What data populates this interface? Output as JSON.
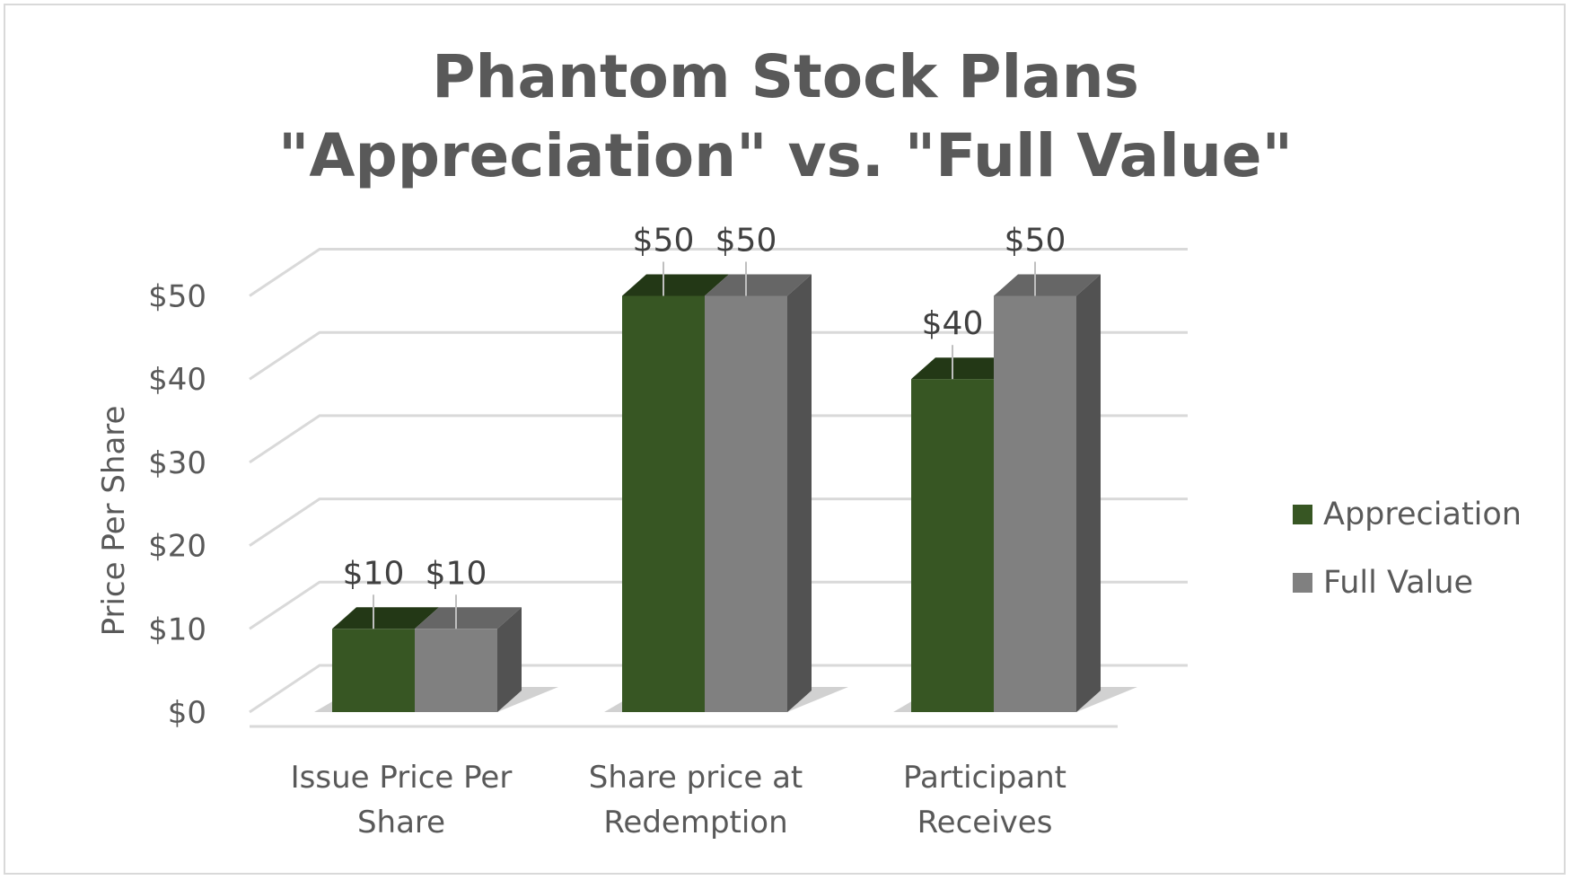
{
  "chart_data": {
    "type": "bar",
    "title_lines": [
      "Phantom Stock Plans",
      "\"Appreciation\" vs. \"Full Value\""
    ],
    "ylabel": "Price Per Share",
    "ylim": [
      0,
      50
    ],
    "y_ticks": [
      "$0",
      "$10",
      "$20",
      "$30",
      "$40",
      "$50"
    ],
    "categories": [
      [
        "Issue Price Per",
        "Share"
      ],
      [
        "Share price at",
        "Redemption"
      ],
      [
        "Participant",
        "Receives"
      ]
    ],
    "series": [
      {
        "name": "Appreciation",
        "values": [
          10,
          50,
          40
        ],
        "labels": [
          "$10",
          "$50",
          "$40"
        ],
        "color": "#375623",
        "top_color": "#233816"
      },
      {
        "name": "Full Value",
        "values": [
          10,
          50,
          50
        ],
        "labels": [
          "$10",
          "$50",
          "$50"
        ],
        "color": "#808080",
        "top_color": "#666666",
        "side_color": "#525252"
      }
    ],
    "legend_position": "right",
    "grid": true
  }
}
